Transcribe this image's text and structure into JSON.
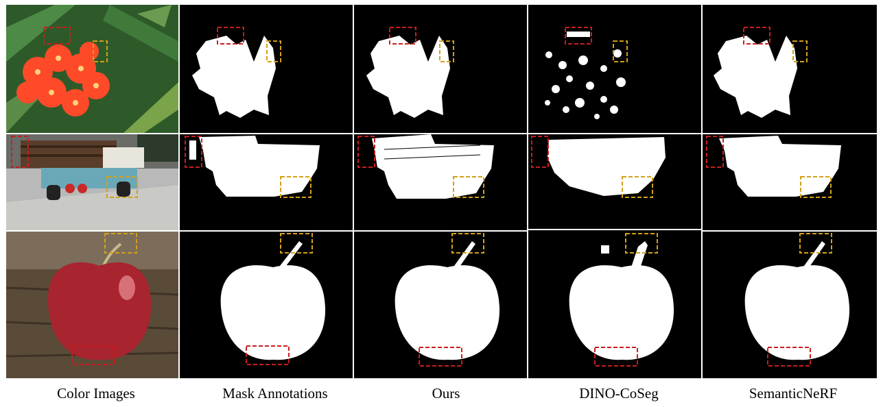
{
  "columns": [
    {
      "label": "Color Images"
    },
    {
      "label": "Mask Annotations"
    },
    {
      "label": "Ours"
    },
    {
      "label": "DINO-CoSeg"
    },
    {
      "label": "SemanticNeRF"
    }
  ],
  "rows": [
    {
      "subject": "flower"
    },
    {
      "subject": "truck"
    },
    {
      "subject": "apple"
    }
  ],
  "colors": {
    "background": "#ffffff",
    "mask_background": "#000000",
    "mask_foreground": "#ffffff",
    "highlight_red": "#c81e1e",
    "highlight_yellow": "#d4a017",
    "petal": "#ff4a2a",
    "leaf": "#2e5a2a",
    "apple": "#a8242e"
  }
}
